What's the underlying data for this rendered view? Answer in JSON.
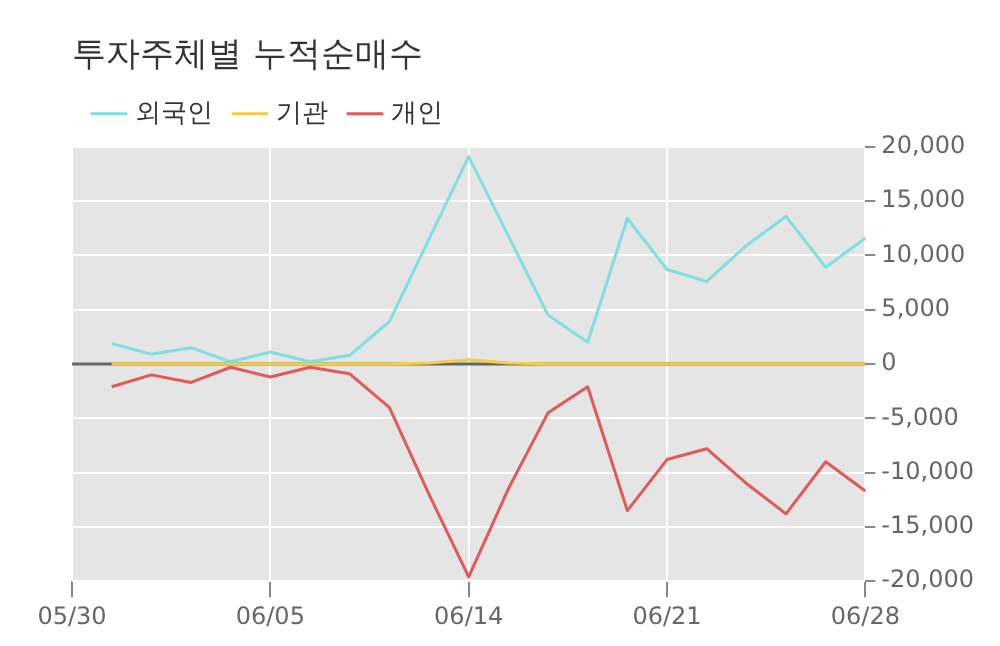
{
  "chart_data": {
    "type": "line",
    "title": "투자주체별 누적순매수",
    "categories": [
      "05/30",
      null,
      null,
      null,
      null,
      "06/05",
      null,
      null,
      null,
      null,
      "06/14",
      null,
      null,
      null,
      null,
      "06/21",
      null,
      null,
      null,
      null,
      "06/28"
    ],
    "series": [
      {
        "name": "외국인",
        "color": "#7fdfdf",
        "values": [
          null,
          1900,
          900,
          1500,
          200,
          1100,
          200,
          800,
          3900,
          11500,
          19100,
          11800,
          4500,
          2000,
          13400,
          8700,
          7600,
          10900,
          13600,
          8900,
          11600
        ]
      },
      {
        "name": "기관",
        "color": "#f5cc45",
        "values": [
          null,
          0,
          0,
          0,
          0,
          0,
          0,
          0,
          0,
          100,
          400,
          100,
          0,
          0,
          0,
          0,
          0,
          0,
          0,
          0,
          0
        ]
      },
      {
        "name": "개인",
        "color": "#e05a5a",
        "values": [
          null,
          -2100,
          -1000,
          -1700,
          -300,
          -1200,
          -300,
          -900,
          -4000,
          -12000,
          -19600,
          -11500,
          -4500,
          -2100,
          -13500,
          -8800,
          -7800,
          -11000,
          -13800,
          -9000,
          -11700
        ]
      }
    ],
    "ylim": [
      -20000,
      20000
    ],
    "yticks": [
      {
        "value": -20000,
        "label": "-20,000"
      },
      {
        "value": -15000,
        "label": "-15,000"
      },
      {
        "value": -10000,
        "label": "-10,000"
      },
      {
        "value": -5000,
        "label": "-5,000"
      },
      0,
      {
        "value": 5000,
        "label": "5,000"
      },
      {
        "value": 10000,
        "label": "10,000"
      },
      {
        "value": 15000,
        "label": "15,000"
      },
      {
        "value": 20000,
        "label": "20,000"
      }
    ],
    "ref_lines": [
      {
        "axis": "y",
        "value": 0,
        "color": "#666666"
      }
    ],
    "grid": true,
    "legend": "top",
    "marker": "none",
    "line_style": "solid"
  }
}
